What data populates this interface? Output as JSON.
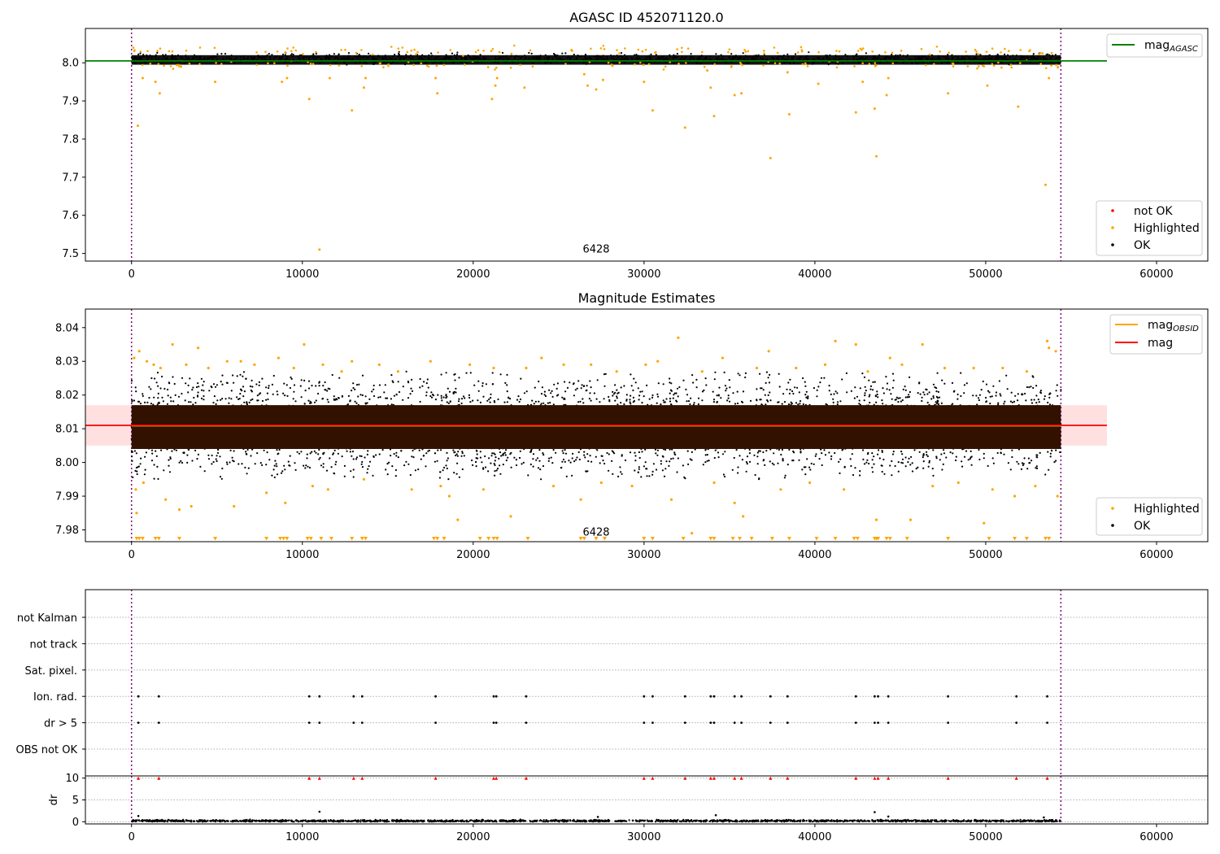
{
  "chart_data": [
    {
      "type": "scatter",
      "title": "AGASC ID 452071120.0",
      "xlim": [
        -2700,
        63000
      ],
      "ylim": [
        7.48,
        8.09
      ],
      "x_ticks": [
        0,
        10000,
        20000,
        30000,
        40000,
        50000,
        60000
      ],
      "y_ticks": [
        7.5,
        7.6,
        7.7,
        7.8,
        7.9,
        8.0
      ],
      "y_tick_labels": [
        "7.5",
        "7.6",
        "7.7",
        "7.8",
        "7.9",
        "8.0"
      ],
      "obs_boundaries": [
        0,
        54400
      ],
      "annotation": {
        "text": "6428",
        "x": 27200,
        "y": 7.49
      },
      "mag_agasc": 8.005,
      "main_band": {
        "x_start": 0,
        "x_end": 54400,
        "y_low": 7.995,
        "y_high": 8.02
      },
      "highlighted_points": [
        [
          370,
          7.835
        ],
        [
          650,
          7.96
        ],
        [
          1400,
          7.95
        ],
        [
          1650,
          7.92
        ],
        [
          2900,
          7.99
        ],
        [
          4900,
          7.95
        ],
        [
          8800,
          7.95
        ],
        [
          9100,
          7.96
        ],
        [
          10400,
          7.905
        ],
        [
          11000,
          7.51
        ],
        [
          11600,
          7.96
        ],
        [
          12900,
          7.875
        ],
        [
          13600,
          7.935
        ],
        [
          13700,
          7.96
        ],
        [
          17800,
          7.96
        ],
        [
          17900,
          7.92
        ],
        [
          21100,
          7.905
        ],
        [
          21300,
          7.94
        ],
        [
          21400,
          7.96
        ],
        [
          23000,
          7.935
        ],
        [
          26500,
          7.97
        ],
        [
          26700,
          7.94
        ],
        [
          27200,
          7.93
        ],
        [
          27600,
          7.955
        ],
        [
          30000,
          7.95
        ],
        [
          30500,
          7.875
        ],
        [
          32400,
          7.83
        ],
        [
          33700,
          7.98
        ],
        [
          33900,
          7.935
        ],
        [
          34100,
          7.86
        ],
        [
          35300,
          7.915
        ],
        [
          35700,
          7.92
        ],
        [
          37400,
          7.75
        ],
        [
          38500,
          7.865
        ],
        [
          38400,
          7.975
        ],
        [
          40200,
          7.945
        ],
        [
          42400,
          7.87
        ],
        [
          42800,
          7.95
        ],
        [
          43500,
          7.88
        ],
        [
          43600,
          7.755
        ],
        [
          44200,
          7.915
        ],
        [
          44300,
          7.96
        ],
        [
          47800,
          7.92
        ],
        [
          50100,
          7.94
        ],
        [
          51900,
          7.885
        ],
        [
          53500,
          7.68
        ],
        [
          53700,
          7.96
        ]
      ],
      "series_colors": {
        "ok": "#000000",
        "highlighted": "#ffa500",
        "not_ok": "#ff0000",
        "mag_agasc_line": "#008000"
      },
      "legend_top": [
        {
          "label": "mag",
          "sub": "AGASC",
          "color": "#008000",
          "kind": "line"
        }
      ],
      "legend_bottom": [
        {
          "label": "not OK",
          "color": "#ff0000",
          "kind": "dot"
        },
        {
          "label": "Highlighted",
          "color": "#ffa500",
          "kind": "dot"
        },
        {
          "label": "OK",
          "color": "#000000",
          "kind": "dot"
        }
      ]
    },
    {
      "type": "scatter",
      "title": "Magnitude Estimates",
      "xlim": [
        -2700,
        63000
      ],
      "ylim": [
        7.9765,
        8.0455
      ],
      "x_ticks": [
        0,
        10000,
        20000,
        30000,
        40000,
        50000,
        60000
      ],
      "y_ticks": [
        7.98,
        7.99,
        8.0,
        8.01,
        8.02,
        8.03,
        8.04
      ],
      "y_tick_labels": [
        "7.98",
        "7.99",
        "8.00",
        "8.01",
        "8.02",
        "8.03",
        "8.04"
      ],
      "obs_boundaries": [
        0,
        54400
      ],
      "annotation": {
        "text": "6428",
        "x": 27200,
        "y": 7.9785
      },
      "mag": 8.011,
      "mag_std_band": [
        8.005,
        8.017
      ],
      "mag_obsid": 8.011,
      "core_band": [
        8.004,
        8.017
      ],
      "ok_range": [
        7.995,
        8.027
      ],
      "highlighted_points": [
        [
          150,
          8.031
        ],
        [
          250,
          7.992
        ],
        [
          300,
          7.985
        ],
        [
          450,
          8.033
        ],
        [
          700,
          7.994
        ],
        [
          900,
          8.03
        ],
        [
          1300,
          8.029
        ],
        [
          1700,
          8.028
        ],
        [
          2000,
          7.989
        ],
        [
          2400,
          8.035
        ],
        [
          2800,
          7.986
        ],
        [
          3200,
          8.029
        ],
        [
          3500,
          7.987
        ],
        [
          3900,
          8.034
        ],
        [
          4500,
          8.028
        ],
        [
          5600,
          8.03
        ],
        [
          6000,
          7.987
        ],
        [
          6400,
          8.03
        ],
        [
          7200,
          8.029
        ],
        [
          7900,
          7.991
        ],
        [
          8600,
          8.031
        ],
        [
          9000,
          7.988
        ],
        [
          9500,
          8.028
        ],
        [
          10100,
          8.035
        ],
        [
          10600,
          7.993
        ],
        [
          11200,
          8.029
        ],
        [
          11500,
          7.992
        ],
        [
          12300,
          8.027
        ],
        [
          12900,
          8.03
        ],
        [
          13600,
          7.995
        ],
        [
          14500,
          8.029
        ],
        [
          15600,
          8.027
        ],
        [
          16400,
          7.992
        ],
        [
          17500,
          8.03
        ],
        [
          18100,
          7.993
        ],
        [
          18600,
          7.99
        ],
        [
          19100,
          7.983
        ],
        [
          19800,
          8.029
        ],
        [
          20600,
          7.992
        ],
        [
          21200,
          8.028
        ],
        [
          22200,
          7.984
        ],
        [
          23100,
          8.028
        ],
        [
          24000,
          8.031
        ],
        [
          24700,
          7.993
        ],
        [
          25300,
          8.029
        ],
        [
          26300,
          7.989
        ],
        [
          26900,
          8.029
        ],
        [
          27500,
          7.994
        ],
        [
          28400,
          8.027
        ],
        [
          29300,
          7.993
        ],
        [
          30100,
          8.029
        ],
        [
          30800,
          8.03
        ],
        [
          31600,
          7.989
        ],
        [
          32000,
          8.037
        ],
        [
          32800,
          7.979
        ],
        [
          33400,
          8.027
        ],
        [
          34100,
          7.994
        ],
        [
          34600,
          8.031
        ],
        [
          35300,
          7.988
        ],
        [
          35800,
          7.984
        ],
        [
          36600,
          8.028
        ],
        [
          37300,
          8.033
        ],
        [
          38000,
          7.992
        ],
        [
          38900,
          8.028
        ],
        [
          39700,
          7.994
        ],
        [
          40600,
          8.029
        ],
        [
          41200,
          8.036
        ],
        [
          41700,
          7.992
        ],
        [
          42400,
          8.035
        ],
        [
          43100,
          8.027
        ],
        [
          43600,
          7.983
        ],
        [
          44400,
          8.031
        ],
        [
          45100,
          8.029
        ],
        [
          45600,
          7.983
        ],
        [
          46300,
          8.035
        ],
        [
          46900,
          7.993
        ],
        [
          47600,
          8.028
        ],
        [
          48400,
          7.994
        ],
        [
          49300,
          8.028
        ],
        [
          49900,
          7.982
        ],
        [
          50400,
          7.992
        ],
        [
          51000,
          8.028
        ],
        [
          51700,
          7.99
        ],
        [
          52400,
          8.027
        ],
        [
          52900,
          7.993
        ],
        [
          53600,
          8.036
        ],
        [
          53700,
          8.034
        ],
        [
          54100,
          8.033
        ],
        [
          54200,
          7.99
        ]
      ],
      "clipped_markers_x": [
        300,
        450,
        650,
        1400,
        1600,
        2800,
        4900,
        7900,
        8700,
        8900,
        9100,
        10300,
        10500,
        11100,
        11700,
        12900,
        13500,
        13700,
        17700,
        17900,
        18300,
        20400,
        20900,
        21200,
        21400,
        23200,
        26300,
        26500,
        27200,
        27700,
        30000,
        30500,
        32300,
        33900,
        34100,
        35200,
        35600,
        36300,
        37500,
        38500,
        40100,
        41200,
        42300,
        42500,
        43500,
        43600,
        43700,
        44200,
        44400,
        45400,
        47800,
        50200,
        51700,
        52400,
        53500,
        53700
      ],
      "series_colors": {
        "ok": "#000000",
        "highlighted": "#ffa500",
        "mag_obsid_line": "#ffa500",
        "mag_line": "#ff0000",
        "core_fill": "#331100",
        "std_band": "#ffdddd"
      },
      "legend_top": [
        {
          "label": "mag",
          "sub": "OBSID",
          "color": "#ffa500",
          "kind": "line"
        },
        {
          "label": "mag",
          "sub": "",
          "color": "#ff0000",
          "kind": "line"
        }
      ],
      "legend_bottom": [
        {
          "label": "Highlighted",
          "color": "#ffa500",
          "kind": "dot"
        },
        {
          "label": "OK",
          "color": "#000000",
          "kind": "dot"
        }
      ]
    },
    {
      "type": "scatter",
      "title": "",
      "xlim": [
        -2700,
        63000
      ],
      "categories": [
        "not Kalman",
        "not track",
        "Sat. pixel.",
        "Ion. rad.",
        "dr > 5",
        "OBS not OK"
      ],
      "flag_x": [
        400,
        1600,
        10400,
        11000,
        13000,
        13500,
        17800,
        21200,
        21350,
        23100,
        30000,
        30500,
        32400,
        33900,
        34100,
        35300,
        35700,
        37400,
        38400,
        42400,
        43500,
        43700,
        44300,
        47800,
        51800,
        53600
      ],
      "flagged_rows": [
        "Ion. rad.",
        "dr > 5"
      ],
      "obs_boundaries": [
        0,
        54400
      ],
      "x_ticks": [
        0,
        10000,
        20000,
        30000,
        40000,
        50000,
        60000
      ]
    },
    {
      "type": "scatter",
      "ylabel": "dr",
      "xlim": [
        -2700,
        63000
      ],
      "ylim": [
        -0.5,
        10.5
      ],
      "y_ticks": [
        0,
        5,
        10
      ],
      "y_tick_labels": [
        "0",
        "5",
        "10"
      ],
      "x_ticks": [
        0,
        10000,
        20000,
        30000,
        40000,
        50000,
        60000
      ],
      "x_tick_labels": [
        "0",
        "10000",
        "20000",
        "30000",
        "40000",
        "50000",
        "60000"
      ],
      "obs_boundaries": [
        0,
        54400
      ],
      "dr_base": 0.2,
      "dr_outliers": [
        [
          400,
          1.3
        ],
        [
          11000,
          2.3
        ],
        [
          27300,
          1.1
        ],
        [
          34200,
          1.5
        ],
        [
          43500,
          2.2
        ],
        [
          44300,
          1.2
        ],
        [
          53400,
          1.0
        ]
      ],
      "capped_points_x": [
        400,
        1600,
        10400,
        11000,
        13000,
        13500,
        17800,
        21200,
        21350,
        23100,
        30000,
        30500,
        32400,
        33900,
        34100,
        35300,
        35700,
        37400,
        38400,
        42400,
        43500,
        43700,
        44300,
        47800,
        51800,
        53600
      ],
      "capped_value": 10,
      "series_colors": {
        "dr": "#000000",
        "capped": "#ff0000"
      }
    }
  ]
}
